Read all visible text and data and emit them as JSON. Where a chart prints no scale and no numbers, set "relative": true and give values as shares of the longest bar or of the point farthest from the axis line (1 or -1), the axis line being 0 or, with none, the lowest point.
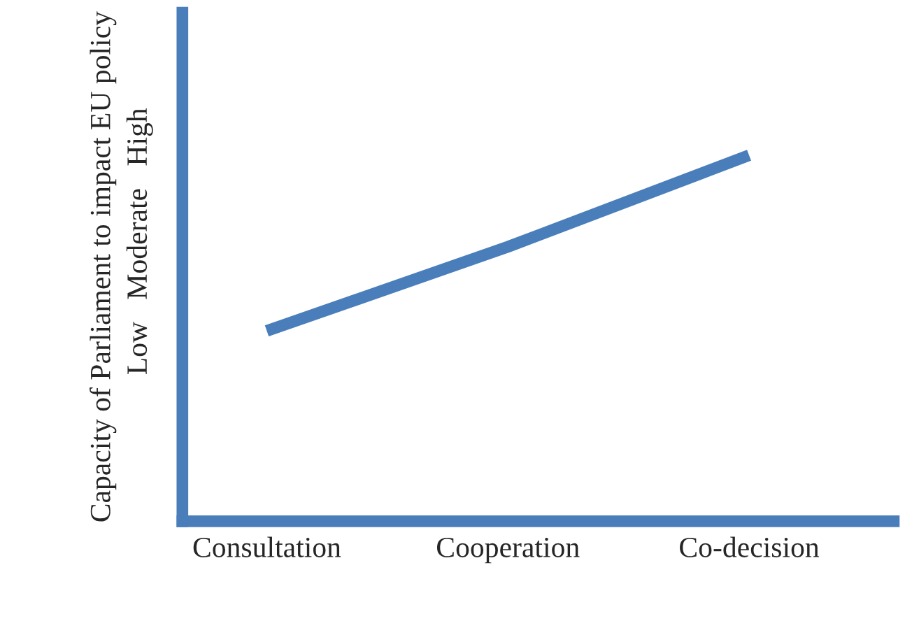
{
  "chart_data": {
    "type": "line",
    "relative": true,
    "ylabel": "Capacity of Parliament to impact EU policy",
    "annotations": [
      "Low   Moderate   High"
    ],
    "categories": [
      "Consultation",
      "Cooperation",
      "Co-decision"
    ],
    "series": [
      {
        "color": "#4a7ebb",
        "values": [
          0.52,
          0.75,
          1
        ]
      }
    ],
    "grid": false,
    "legend": false
  }
}
